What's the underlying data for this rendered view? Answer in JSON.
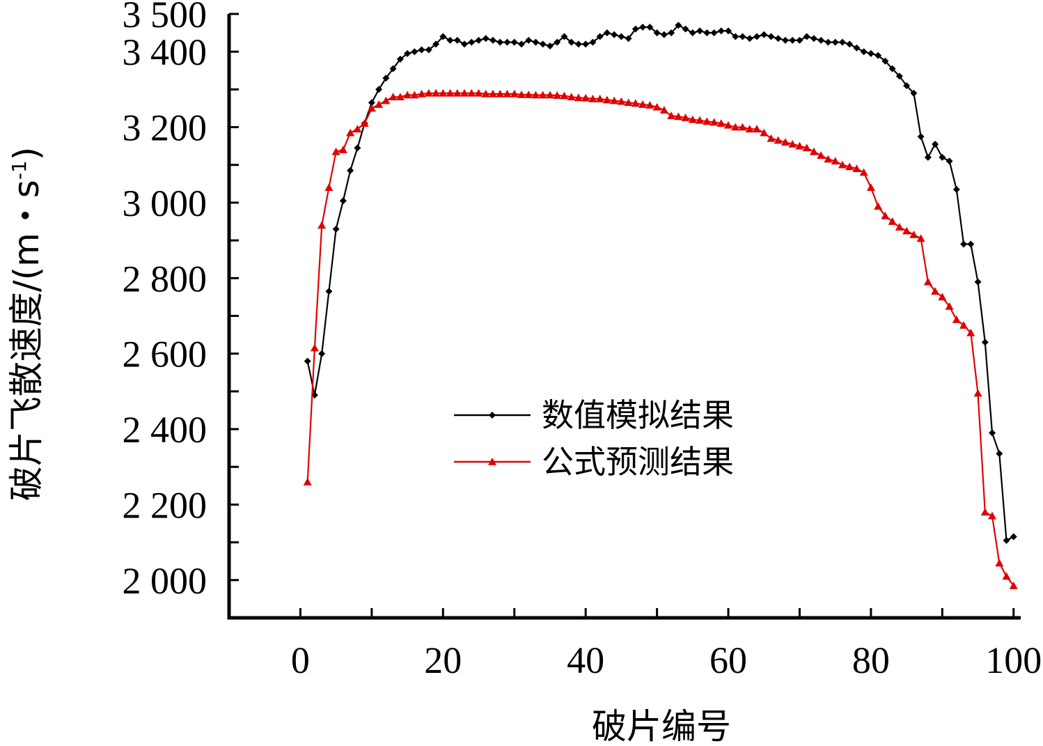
{
  "chart_data": {
    "type": "line",
    "xlabel": "破片编号",
    "ylabel_main": "破片飞散速度/(m・s",
    "ylabel_sup": "-1",
    "ylabel_close": ")",
    "xlim": [
      -10,
      101
    ],
    "ylim": [
      1900,
      3500
    ],
    "xticks": [
      0,
      20,
      40,
      60,
      80,
      100
    ],
    "xtick_labels": [
      "0",
      "20",
      "40",
      "60",
      "80",
      "100"
    ],
    "yticks": [
      2000,
      2200,
      2400,
      2600,
      2800,
      3000,
      3200,
      3400,
      3500
    ],
    "ytick_labels": [
      "2 000",
      "2 200",
      "2 400",
      "2 600",
      "2 800",
      "3 000",
      "3 200",
      "3 400",
      "3 500"
    ],
    "legend_position": "center",
    "series": [
      {
        "name": "数值模拟结果",
        "color": "#000000",
        "marker": "diamond",
        "x": [
          1,
          2,
          3,
          4,
          5,
          6,
          7,
          8,
          9,
          10,
          11,
          12,
          13,
          14,
          15,
          16,
          17,
          18,
          19,
          20,
          21,
          22,
          23,
          24,
          25,
          26,
          27,
          28,
          29,
          30,
          31,
          32,
          33,
          34,
          35,
          36,
          37,
          38,
          39,
          40,
          41,
          42,
          43,
          44,
          45,
          46,
          47,
          48,
          49,
          50,
          51,
          52,
          53,
          54,
          55,
          56,
          57,
          58,
          59,
          60,
          61,
          62,
          63,
          64,
          65,
          66,
          67,
          68,
          69,
          70,
          71,
          72,
          73,
          74,
          75,
          76,
          77,
          78,
          79,
          80,
          81,
          82,
          83,
          84,
          85,
          86,
          87,
          88,
          89,
          90,
          91,
          92,
          93,
          94,
          95,
          96,
          97,
          98,
          99,
          100
        ],
        "y": [
          2580,
          2490,
          2600,
          2765,
          2930,
          3005,
          3085,
          3145,
          3210,
          3265,
          3300,
          3330,
          3355,
          3380,
          3395,
          3400,
          3405,
          3405,
          3420,
          3440,
          3430,
          3430,
          3420,
          3425,
          3430,
          3435,
          3430,
          3425,
          3425,
          3425,
          3420,
          3430,
          3425,
          3420,
          3415,
          3425,
          3440,
          3425,
          3420,
          3420,
          3425,
          3440,
          3450,
          3445,
          3440,
          3435,
          3460,
          3465,
          3465,
          3450,
          3445,
          3450,
          3470,
          3460,
          3450,
          3455,
          3450,
          3450,
          3455,
          3455,
          3440,
          3440,
          3435,
          3440,
          3445,
          3440,
          3435,
          3430,
          3430,
          3430,
          3440,
          3435,
          3430,
          3425,
          3425,
          3425,
          3420,
          3410,
          3400,
          3395,
          3390,
          3375,
          3355,
          3335,
          3310,
          3290,
          3175,
          3120,
          3155,
          3120,
          3110,
          3035,
          2890,
          2890,
          2790,
          2630,
          2390,
          2335,
          2105,
          2115
        ]
      },
      {
        "name": "公式预测结果",
        "color": "#e00000",
        "marker": "triangle",
        "x": [
          1,
          2,
          3,
          4,
          5,
          6,
          7,
          8,
          9,
          10,
          11,
          12,
          13,
          14,
          15,
          16,
          17,
          18,
          19,
          20,
          21,
          22,
          23,
          24,
          25,
          26,
          27,
          28,
          29,
          30,
          31,
          32,
          33,
          34,
          35,
          36,
          37,
          38,
          39,
          40,
          41,
          42,
          43,
          44,
          45,
          46,
          47,
          48,
          49,
          50,
          51,
          52,
          53,
          54,
          55,
          56,
          57,
          58,
          59,
          60,
          61,
          62,
          63,
          64,
          65,
          66,
          67,
          68,
          69,
          70,
          71,
          72,
          73,
          74,
          75,
          76,
          77,
          78,
          79,
          80,
          81,
          82,
          83,
          84,
          85,
          86,
          87,
          88,
          89,
          90,
          91,
          92,
          93,
          94,
          95,
          96,
          97,
          98,
          99,
          100
        ],
        "y": [
          2260,
          2615,
          2940,
          3040,
          3135,
          3140,
          3185,
          3195,
          3210,
          3250,
          3260,
          3270,
          3280,
          3280,
          3285,
          3285,
          3288,
          3290,
          3290,
          3290,
          3290,
          3290,
          3290,
          3290,
          3290,
          3288,
          3288,
          3288,
          3288,
          3288,
          3286,
          3286,
          3285,
          3285,
          3285,
          3284,
          3283,
          3280,
          3278,
          3277,
          3275,
          3275,
          3272,
          3270,
          3268,
          3265,
          3263,
          3260,
          3258,
          3253,
          3245,
          3230,
          3228,
          3225,
          3220,
          3218,
          3215,
          3213,
          3210,
          3205,
          3200,
          3200,
          3195,
          3195,
          3185,
          3170,
          3165,
          3160,
          3155,
          3150,
          3145,
          3135,
          3125,
          3115,
          3110,
          3100,
          3095,
          3090,
          3080,
          3040,
          2990,
          2965,
          2950,
          2935,
          2925,
          2915,
          2905,
          2790,
          2765,
          2750,
          2725,
          2690,
          2675,
          2655,
          2495,
          2180,
          2170,
          2045,
          2010,
          1985
        ]
      }
    ]
  }
}
